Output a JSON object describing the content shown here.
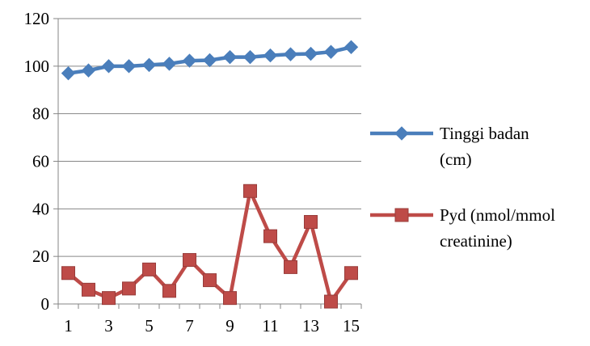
{
  "chart_data": {
    "type": "line",
    "x": [
      1,
      2,
      3,
      4,
      5,
      6,
      7,
      8,
      9,
      10,
      11,
      12,
      13,
      14,
      15
    ],
    "x_tick_labels": [
      "1",
      "3",
      "5",
      "7",
      "9",
      "11",
      "13",
      "15"
    ],
    "x_tick_values": [
      1,
      3,
      5,
      7,
      9,
      11,
      13,
      15
    ],
    "ylim": [
      0,
      120
    ],
    "y_ticks": [
      0,
      20,
      40,
      60,
      80,
      100,
      120
    ],
    "grid": "horizontal major gridlines",
    "legend_position": "right",
    "series": [
      {
        "name": "Tinggi badan (cm)",
        "legend_lines": [
          "Tinggi badan",
          "(cm)"
        ],
        "color": "#4a7ebb",
        "marker": "diamond",
        "values": [
          97,
          98.2,
          100,
          100,
          100.5,
          101,
          102.3,
          102.5,
          103.8,
          103.8,
          104.5,
          105,
          105.2,
          106,
          108
        ]
      },
      {
        "name": "Pyd (nmol/mmol creatinine)",
        "legend_lines": [
          "Pyd (nmol/mmol",
          "creatinine)"
        ],
        "color": "#be4b48",
        "marker": "square",
        "values": [
          13,
          6,
          2.5,
          6.5,
          14.5,
          5.5,
          18.5,
          10,
          2.5,
          47.5,
          28.5,
          15.5,
          34.5,
          1,
          13
        ]
      }
    ]
  }
}
